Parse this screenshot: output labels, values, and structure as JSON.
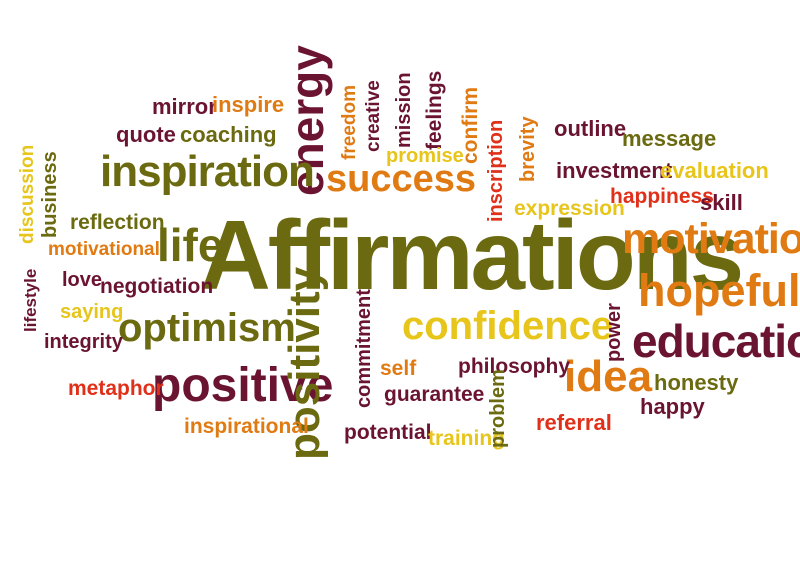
{
  "colors": {
    "dark_red": "#8a1020",
    "olive": "#6b6a10",
    "orange": "#e07a12",
    "yellow": "#e7c51a",
    "red": "#e0301a",
    "plum": "#6a1431"
  },
  "words": [
    {
      "text": "Affirmations",
      "color": "olive"
    },
    {
      "text": "energy",
      "color": "plum"
    },
    {
      "text": "inspiration",
      "color": "olive"
    },
    {
      "text": "success",
      "color": "orange"
    },
    {
      "text": "motivation",
      "color": "orange"
    },
    {
      "text": "hopeful",
      "color": "orange"
    },
    {
      "text": "education",
      "color": "plum"
    },
    {
      "text": "confidence",
      "color": "yellow"
    },
    {
      "text": "optimism",
      "color": "olive"
    },
    {
      "text": "positive",
      "color": "plum"
    },
    {
      "text": "positivity",
      "color": "olive"
    },
    {
      "text": "idea",
      "color": "orange"
    },
    {
      "text": "life",
      "color": "olive"
    },
    {
      "text": "mirror",
      "color": "plum"
    },
    {
      "text": "inspire",
      "color": "orange"
    },
    {
      "text": "quote",
      "color": "plum"
    },
    {
      "text": "coaching",
      "color": "olive"
    },
    {
      "text": "freedom",
      "color": "orange"
    },
    {
      "text": "creative",
      "color": "plum"
    },
    {
      "text": "mission",
      "color": "plum"
    },
    {
      "text": "feelings",
      "color": "plum"
    },
    {
      "text": "confirm",
      "color": "orange"
    },
    {
      "text": "promise",
      "color": "yellow"
    },
    {
      "text": "inscription",
      "color": "red"
    },
    {
      "text": "brevity",
      "color": "orange"
    },
    {
      "text": "outline",
      "color": "plum"
    },
    {
      "text": "message",
      "color": "olive"
    },
    {
      "text": "investment",
      "color": "plum"
    },
    {
      "text": "evaluation",
      "color": "yellow"
    },
    {
      "text": "happiness",
      "color": "red"
    },
    {
      "text": "skill",
      "color": "plum"
    },
    {
      "text": "expression",
      "color": "yellow"
    },
    {
      "text": "discussion",
      "color": "yellow"
    },
    {
      "text": "business",
      "color": "olive"
    },
    {
      "text": "reflection",
      "color": "olive"
    },
    {
      "text": "motivational",
      "color": "orange"
    },
    {
      "text": "lifestyle",
      "color": "plum"
    },
    {
      "text": "love",
      "color": "plum"
    },
    {
      "text": "negotiation",
      "color": "plum"
    },
    {
      "text": "saying",
      "color": "yellow"
    },
    {
      "text": "integrity",
      "color": "plum"
    },
    {
      "text": "metaphor",
      "color": "red"
    },
    {
      "text": "inspirational",
      "color": "orange"
    },
    {
      "text": "commitment",
      "color": "plum"
    },
    {
      "text": "self",
      "color": "orange"
    },
    {
      "text": "philosophy",
      "color": "plum"
    },
    {
      "text": "guarantee",
      "color": "plum"
    },
    {
      "text": "potential",
      "color": "plum"
    },
    {
      "text": "training",
      "color": "yellow"
    },
    {
      "text": "problem",
      "color": "olive"
    },
    {
      "text": "referral",
      "color": "red"
    },
    {
      "text": "power",
      "color": "plum"
    },
    {
      "text": "honesty",
      "color": "olive"
    },
    {
      "text": "happy",
      "color": "plum"
    }
  ]
}
